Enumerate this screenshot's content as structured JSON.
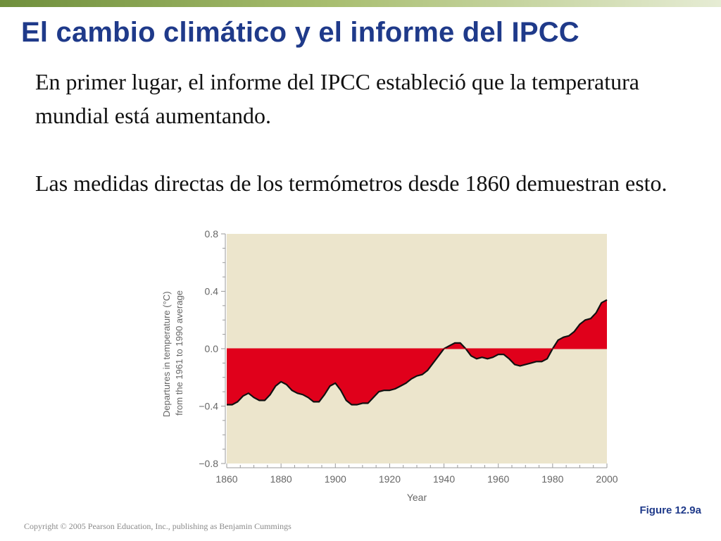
{
  "slide": {
    "title": "El cambio climático y el informe del IPCC",
    "paragraphs": [
      "En primer lugar, el informe del IPCC estableció que la temperatura mundial está aumentando.",
      "Las medidas directas de los termómetros desde 1860 demuestran esto."
    ],
    "figure_label": "Figure 12.9a",
    "copyright": "Copyright © 2005 Pearson Education, Inc., publishing as Benjamin Cummings"
  },
  "colors": {
    "title": "#1f3a8a",
    "top_bar": "#8aa64e",
    "chart_background": "#ece5cc",
    "area_fill": "#e0001b",
    "line": "#111111",
    "axis_text": "#666666"
  },
  "chart_data": {
    "type": "area",
    "ylabel": "Departures in temperature (°C) from the 1961 to 1990 average",
    "xlabel": "Year",
    "xlim": [
      1860,
      2000
    ],
    "ylim": [
      -0.8,
      0.8
    ],
    "x_ticks": [
      1860,
      1880,
      1900,
      1920,
      1940,
      1960,
      1980,
      2000
    ],
    "y_ticks": [
      {
        "value": 0.8,
        "label": "0.8"
      },
      {
        "value": 0.4,
        "label": "0.4"
      },
      {
        "value": 0.0,
        "label": "0.0"
      },
      {
        "value": -0.4,
        "label": "−0.4"
      },
      {
        "value": -0.8,
        "label": "−0.8"
      }
    ],
    "grid": false,
    "baseline": 0.0,
    "x": [
      1860,
      1862,
      1864,
      1866,
      1868,
      1870,
      1872,
      1874,
      1876,
      1878,
      1880,
      1882,
      1884,
      1886,
      1888,
      1890,
      1892,
      1894,
      1896,
      1898,
      1900,
      1902,
      1904,
      1906,
      1908,
      1910,
      1912,
      1914,
      1916,
      1918,
      1920,
      1922,
      1924,
      1926,
      1928,
      1930,
      1932,
      1934,
      1936,
      1938,
      1940,
      1942,
      1944,
      1946,
      1948,
      1950,
      1952,
      1954,
      1956,
      1958,
      1960,
      1962,
      1964,
      1966,
      1968,
      1970,
      1972,
      1974,
      1976,
      1978,
      1980,
      1982,
      1984,
      1986,
      1988,
      1990,
      1992,
      1994,
      1996,
      1998,
      2000
    ],
    "values": [
      -0.39,
      -0.39,
      -0.37,
      -0.33,
      -0.31,
      -0.34,
      -0.36,
      -0.36,
      -0.32,
      -0.26,
      -0.23,
      -0.25,
      -0.29,
      -0.31,
      -0.32,
      -0.34,
      -0.37,
      -0.37,
      -0.32,
      -0.26,
      -0.24,
      -0.29,
      -0.36,
      -0.39,
      -0.39,
      -0.38,
      -0.38,
      -0.34,
      -0.3,
      -0.29,
      -0.29,
      -0.28,
      -0.26,
      -0.24,
      -0.21,
      -0.19,
      -0.18,
      -0.15,
      -0.1,
      -0.05,
      0.0,
      0.02,
      0.04,
      0.04,
      0.0,
      -0.05,
      -0.07,
      -0.06,
      -0.07,
      -0.06,
      -0.04,
      -0.04,
      -0.07,
      -0.11,
      -0.12,
      -0.11,
      -0.1,
      -0.09,
      -0.09,
      -0.07,
      0.0,
      0.06,
      0.08,
      0.09,
      0.12,
      0.17,
      0.2,
      0.21,
      0.25,
      0.32,
      0.34
    ]
  }
}
